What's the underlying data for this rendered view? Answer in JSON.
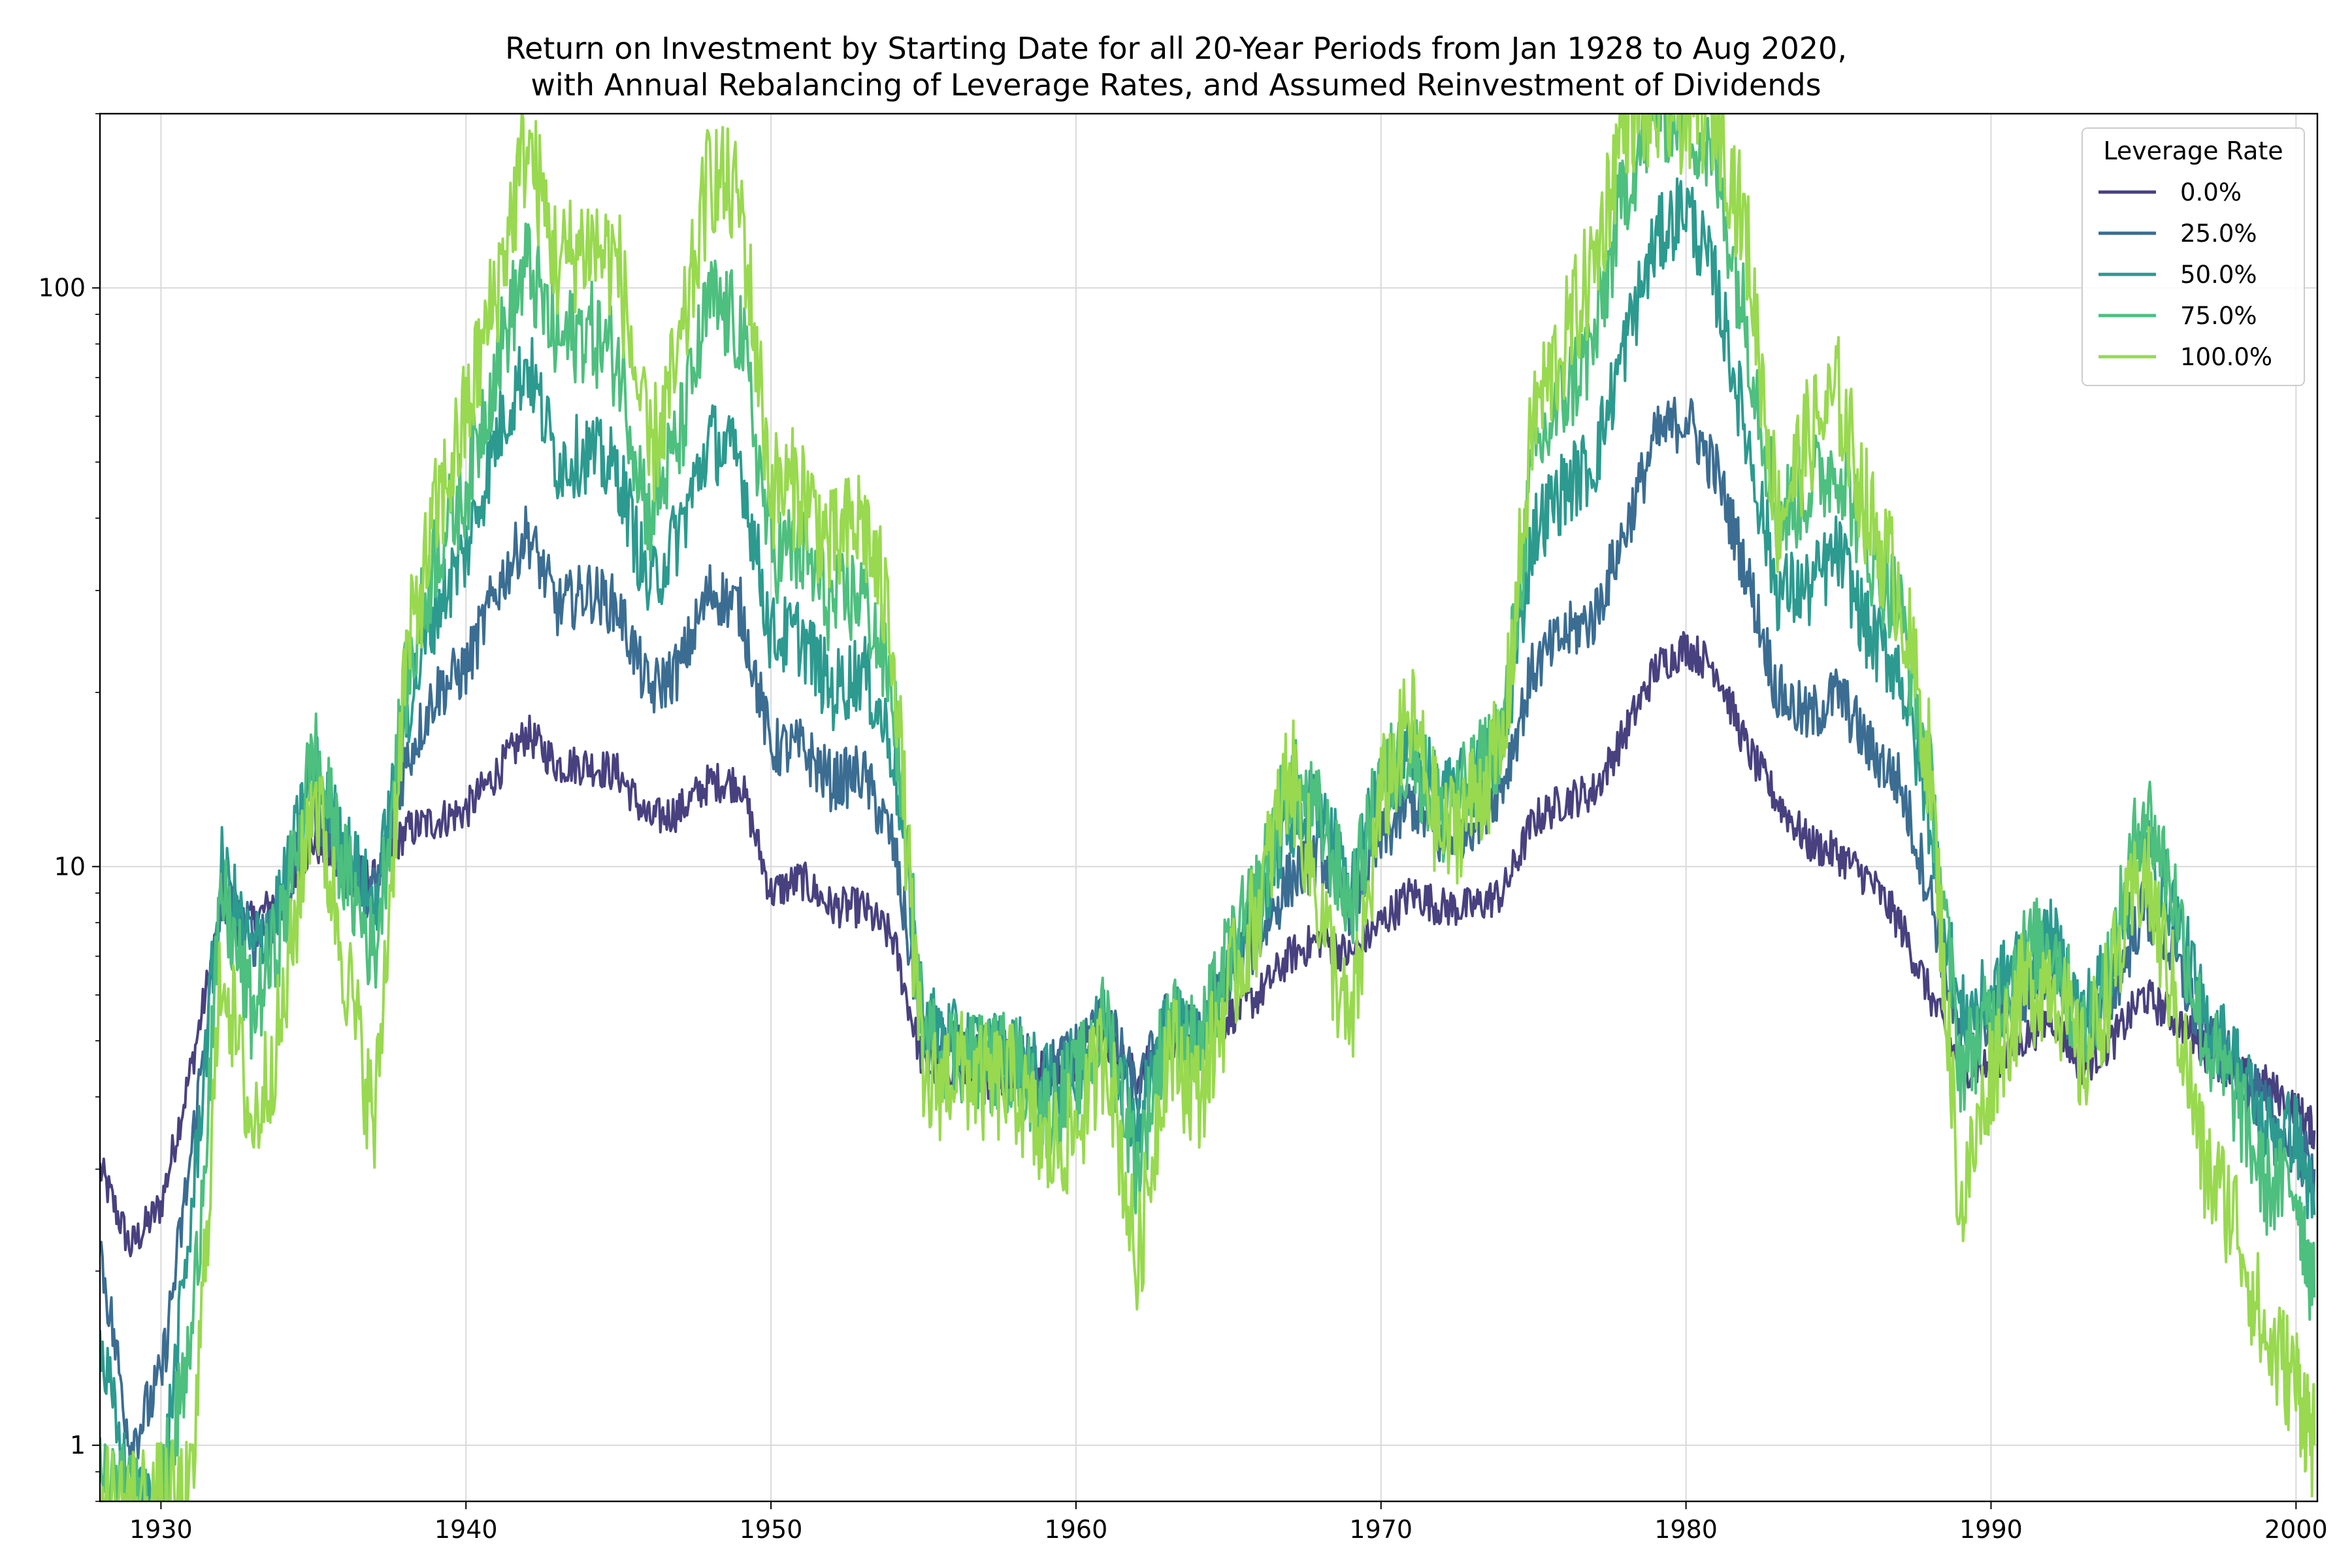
{
  "chart_data": {
    "type": "line",
    "title": [
      "Return on Investment by Starting Date for all 20-Year Periods from Jan 1928 to Aug 2020,",
      "with Annual Rebalancing of Leverage Rates, and Assumed Reinvestment of Dividends"
    ],
    "xlabel": "",
    "ylabel": "",
    "y_scale": "log",
    "xlim": [
      1928.0,
      2000.7
    ],
    "ylim": [
      0.8,
      200
    ],
    "x_ticks": [
      1930,
      1940,
      1950,
      1960,
      1970,
      1980,
      1990,
      2000
    ],
    "y_ticks": [
      1,
      10,
      100
    ],
    "y_tick_labels": [
      "1",
      "10",
      "100"
    ],
    "grid": true,
    "legend": {
      "title": "Leverage Rate",
      "placement": "top-right"
    },
    "colors": [
      "#48417f",
      "#3b6d92",
      "#2c9a8f",
      "#4dbf7e",
      "#98d94f"
    ],
    "x": [
      1928,
      1929,
      1930,
      1931,
      1932,
      1933,
      1934,
      1935,
      1936,
      1937,
      1938,
      1939,
      1940,
      1941,
      1942,
      1943,
      1944,
      1945,
      1946,
      1947,
      1948,
      1949,
      1950,
      1951,
      1952,
      1953,
      1954,
      1955,
      1956,
      1957,
      1958,
      1959,
      1960,
      1961,
      1962,
      1963,
      1964,
      1965,
      1966,
      1967,
      1968,
      1969,
      1970,
      1971,
      1972,
      1973,
      1974,
      1975,
      1976,
      1977,
      1978,
      1979,
      1980,
      1981,
      1982,
      1983,
      1984,
      1985,
      1986,
      1987,
      1988,
      1989,
      1990,
      1991,
      1992,
      1993,
      1994,
      1995,
      1996,
      1997,
      1998,
      1999,
      2000,
      2000.6
    ],
    "series": [
      {
        "name": "0.0%",
        "values": [
          3.0,
          2.2,
          2.6,
          4.5,
          8.5,
          8.0,
          9.0,
          11.0,
          10.0,
          9.5,
          11.5,
          12.0,
          12.5,
          14.5,
          17.0,
          15.0,
          15.0,
          14.5,
          12.0,
          12.5,
          14.0,
          14.0,
          9.0,
          9.5,
          8.5,
          8.5,
          7.5,
          4.5,
          4.5,
          4.3,
          4.3,
          4.5,
          4.5,
          5.0,
          4.3,
          5.0,
          4.8,
          5.5,
          6.0,
          7.0,
          7.5,
          7.0,
          8.0,
          9.0,
          8.5,
          8.5,
          9.0,
          12.0,
          13.0,
          13.5,
          17.0,
          22.0,
          24.0,
          22.0,
          16.0,
          13.0,
          11.0,
          10.5,
          9.5,
          8.0,
          6.0,
          4.5,
          4.5,
          5.0,
          5.5,
          4.5,
          5.0,
          6.0,
          5.5,
          4.8,
          4.4,
          4.2,
          3.8,
          3.5
        ]
      },
      {
        "name": "25.0%",
        "values": [
          2.2,
          1.0,
          1.3,
          3.2,
          9.0,
          7.5,
          8.5,
          13.0,
          10.0,
          9.0,
          15.0,
          20.0,
          22.0,
          30.0,
          38.0,
          28.0,
          30.0,
          28.0,
          20.0,
          22.0,
          30.0,
          28.0,
          16.0,
          16.0,
          14.0,
          14.5,
          11.0,
          5.0,
          4.8,
          4.5,
          4.7,
          4.4,
          4.8,
          5.5,
          4.0,
          5.5,
          5.0,
          6.5,
          7.5,
          9.5,
          10.5,
          8.5,
          11.0,
          13.0,
          11.0,
          12.0,
          14.0,
          22.0,
          25.0,
          27.0,
          38.0,
          55.0,
          60.0,
          48.0,
          32.0,
          20.0,
          18.0,
          20.0,
          16.0,
          14.0,
          9.0,
          5.0,
          5.5,
          6.0,
          6.5,
          5.0,
          6.0,
          8.5,
          7.0,
          5.0,
          4.5,
          3.8,
          3.2,
          3.0
        ]
      },
      {
        "name": "50.0%",
        "values": [
          1.5,
          0.8,
          0.8,
          2.5,
          10.0,
          7.0,
          9.0,
          15.0,
          11.0,
          8.5,
          18.0,
          28.0,
          35.0,
          55.0,
          75.0,
          50.0,
          52.0,
          48.0,
          30.0,
          38.0,
          55.0,
          50.0,
          25.0,
          25.0,
          20.0,
          22.0,
          16.0,
          5.5,
          5.0,
          4.8,
          4.8,
          4.2,
          4.5,
          5.5,
          3.5,
          5.5,
          5.0,
          7.0,
          8.5,
          12.0,
          13.0,
          9.0,
          14.0,
          16.0,
          13.0,
          14.0,
          16.0,
          38.0,
          45.0,
          50.0,
          80.0,
          120.0,
          140.0,
          100.0,
          55.0,
          30.0,
          30.0,
          35.0,
          25.0,
          22.0,
          12.0,
          5.5,
          6.0,
          7.0,
          7.5,
          5.5,
          7.0,
          11.0,
          8.5,
          5.5,
          4.7,
          3.5,
          3.5,
          2.5
        ]
      },
      {
        "name": "75.0%",
        "values": [
          0.9,
          0.8,
          0.8,
          1.5,
          9.0,
          5.5,
          8.0,
          16.0,
          10.0,
          7.0,
          20.0,
          35.0,
          45.0,
          75.0,
          110.0,
          80.0,
          85.0,
          75.0,
          40.0,
          55.0,
          95.0,
          85.0,
          35.0,
          35.0,
          28.0,
          30.0,
          20.0,
          5.0,
          4.8,
          4.6,
          4.6,
          3.8,
          4.2,
          5.5,
          3.0,
          5.5,
          4.8,
          7.0,
          9.0,
          14.0,
          12.0,
          8.5,
          14.0,
          16.0,
          12.0,
          14.0,
          17.0,
          50.0,
          65.0,
          80.0,
          150.0,
          200.0,
          200.0,
          160.0,
          85.0,
          40.0,
          45.0,
          50.0,
          35.0,
          28.0,
          14.0,
          4.5,
          5.5,
          7.0,
          7.5,
          5.0,
          7.0,
          13.0,
          9.0,
          5.0,
          4.0,
          2.8,
          2.8,
          1.8
        ]
      },
      {
        "name": "100.0%",
        "values": [
          0.8,
          0.8,
          0.8,
          0.8,
          7.0,
          3.5,
          5.5,
          14.0,
          7.0,
          3.5,
          22.0,
          40.0,
          60.0,
          100.0,
          180.0,
          110.0,
          120.0,
          110.0,
          50.0,
          75.0,
          160.0,
          140.0,
          45.0,
          45.0,
          35.0,
          40.0,
          25.0,
          4.0,
          4.5,
          4.2,
          4.2,
          3.2,
          3.5,
          5.0,
          2.0,
          5.0,
          4.0,
          6.0,
          8.5,
          15.0,
          8.5,
          5.0,
          13.0,
          18.0,
          11.0,
          13.0,
          16.0,
          60.0,
          80.0,
          110.0,
          200.0,
          200.0,
          200.0,
          200.0,
          120.0,
          40.0,
          55.0,
          65.0,
          40.0,
          30.0,
          15.0,
          2.5,
          4.5,
          6.0,
          6.5,
          4.5,
          6.5,
          10.0,
          6.0,
          3.0,
          2.5,
          1.5,
          1.3,
          1.0
        ]
      }
    ]
  }
}
